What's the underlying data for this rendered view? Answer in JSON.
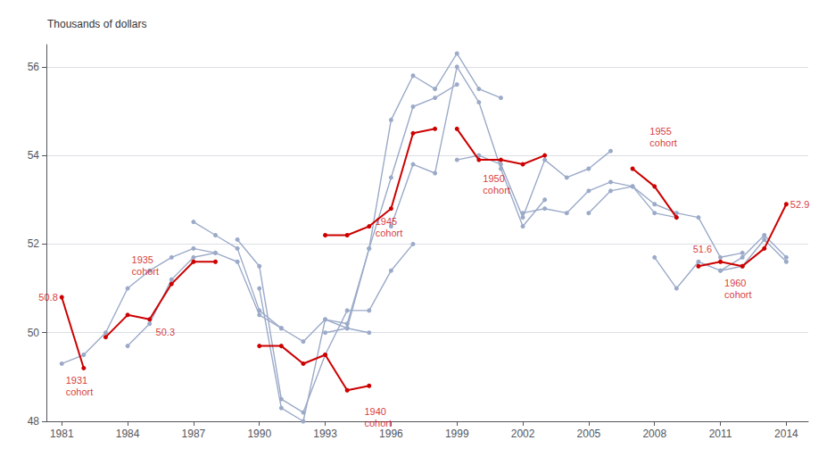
{
  "chart_data": {
    "type": "line",
    "title": "Thousands of dollars",
    "xlim": [
      1980.3,
      2015.0
    ],
    "xticks": [
      1981,
      1984,
      1987,
      1990,
      1993,
      1996,
      1999,
      2002,
      2005,
      2008,
      2011,
      2014
    ],
    "ylim": [
      48,
      56.5
    ],
    "yticks": [
      48,
      50,
      52,
      54,
      56
    ],
    "grid": true,
    "series": [
      {
        "color": "#9BAAC8",
        "marker": "circle",
        "line_style": "solid",
        "x": [
          1981,
          1982,
          1983,
          1984,
          1985,
          1986,
          1987,
          1988
        ],
        "values": [
          49.3,
          49.5,
          50.0,
          51.0,
          51.4,
          51.7,
          51.9,
          51.8
        ]
      },
      {
        "color": "#9BAAC8",
        "marker": "circle",
        "line_style": "solid",
        "x": [
          1984,
          1985,
          1986,
          1987,
          1988,
          1989,
          1990,
          1991
        ],
        "values": [
          49.7,
          50.2,
          51.2,
          51.7,
          51.8,
          51.6,
          50.4,
          50.1
        ]
      },
      {
        "color": "#9BAAC8",
        "marker": "circle",
        "line_style": "solid",
        "x": [
          1987,
          1988,
          1989,
          1990,
          1991,
          1992,
          1993,
          1994,
          1995
        ],
        "values": [
          52.5,
          52.2,
          51.9,
          50.5,
          50.1,
          49.8,
          50.3,
          50.1,
          50.0
        ]
      },
      {
        "color": "#9BAAC8",
        "marker": "circle",
        "line_style": "solid",
        "x": [
          1989,
          1990,
          1991,
          1992,
          1993,
          1994,
          1995,
          1996,
          1997
        ],
        "values": [
          52.1,
          51.5,
          48.5,
          48.2,
          49.5,
          50.5,
          50.5,
          51.4,
          52.0
        ]
      },
      {
        "color": "#9BAAC8",
        "marker": "circle",
        "line_style": "solid",
        "x": [
          1990,
          1991,
          1992,
          1993,
          1994,
          1995,
          1996,
          1997,
          1998,
          1999
        ],
        "values": [
          51.0,
          48.3,
          48.0,
          50.3,
          50.2,
          51.9,
          53.5,
          55.1,
          55.3,
          55.6
        ]
      },
      {
        "color": "#9BAAC8",
        "marker": "circle",
        "line_style": "solid",
        "x": [
          1993,
          1994,
          1995,
          1996,
          1997,
          1998,
          1999,
          2000,
          2001
        ],
        "values": [
          50.0,
          50.1,
          51.9,
          54.8,
          55.8,
          55.5,
          56.3,
          55.5,
          55.3
        ]
      },
      {
        "color": "#9BAAC8",
        "marker": "circle",
        "line_style": "solid",
        "x": [
          1996,
          1997,
          1998,
          1999,
          2000,
          2001,
          2002,
          2003
        ],
        "values": [
          52.4,
          53.8,
          53.6,
          56.0,
          55.2,
          53.7,
          52.4,
          53.0
        ]
      },
      {
        "color": "#9BAAC8",
        "marker": "circle",
        "line_style": "solid",
        "x": [
          1999,
          2000,
          2001,
          2002,
          2003,
          2004,
          2005,
          2006
        ],
        "values": [
          53.9,
          54.0,
          53.8,
          52.6,
          53.9,
          53.5,
          53.7,
          54.1
        ]
      },
      {
        "color": "#9BAAC8",
        "marker": "circle",
        "line_style": "solid",
        "x": [
          2002,
          2003,
          2004,
          2005,
          2006,
          2007,
          2008,
          2009
        ],
        "values": [
          52.7,
          52.8,
          52.7,
          53.2,
          53.4,
          53.3,
          52.7,
          52.6
        ]
      },
      {
        "color": "#9BAAC8",
        "marker": "circle",
        "line_style": "solid",
        "x": [
          2005,
          2006,
          2007,
          2008,
          2009,
          2010,
          2011,
          2012
        ],
        "values": [
          52.7,
          53.2,
          53.3,
          52.9,
          52.7,
          52.6,
          51.7,
          51.8
        ]
      },
      {
        "color": "#9BAAC8",
        "marker": "circle",
        "line_style": "solid",
        "x": [
          2008,
          2009,
          2010,
          2011,
          2012,
          2013,
          2014
        ],
        "values": [
          51.7,
          51.0,
          51.6,
          51.4,
          51.7,
          52.2,
          51.7
        ]
      },
      {
        "color": "#9BAAC8",
        "marker": "circle",
        "line_style": "solid",
        "x": [
          2011,
          2012,
          2013,
          2014
        ],
        "values": [
          51.4,
          51.5,
          52.1,
          51.6
        ]
      },
      {
        "color": "#CC0000",
        "marker": "circle",
        "line_style": "solid",
        "x": [
          1981,
          1982
        ],
        "values": [
          50.8,
          49.2
        ]
      },
      {
        "color": "#CC0000",
        "marker": "circle",
        "line_style": "solid",
        "x": [
          1983,
          1984,
          1985,
          1986,
          1987,
          1988
        ],
        "values": [
          49.9,
          50.4,
          50.3,
          51.1,
          51.6,
          51.6
        ]
      },
      {
        "color": "#CC0000",
        "marker": "circle",
        "line_style": "solid",
        "x": [
          1990,
          1991,
          1992,
          1993,
          1994,
          1995
        ],
        "values": [
          49.7,
          49.7,
          49.3,
          49.5,
          48.7,
          48.8
        ]
      },
      {
        "color": "#CC0000",
        "marker": "circle",
        "line_style": "solid",
        "x": [
          1993,
          1994,
          1995,
          1996,
          1997,
          1998
        ],
        "values": [
          52.2,
          52.2,
          52.4,
          52.8,
          54.5,
          54.6
        ]
      },
      {
        "color": "#CC0000",
        "marker": "circle",
        "line_style": "solid",
        "x": [
          1999,
          2000,
          2001,
          2002,
          2003
        ],
        "values": [
          54.6,
          53.9,
          53.9,
          53.8,
          54.0
        ]
      },
      {
        "color": "#CC0000",
        "marker": "circle",
        "line_style": "solid",
        "x": [
          2007,
          2008,
          2009
        ],
        "values": [
          53.7,
          53.3,
          52.6
        ]
      },
      {
        "color": "#CC0000",
        "marker": "circle",
        "line_style": "solid",
        "x": [
          2010,
          2011,
          2012,
          2013,
          2014
        ],
        "values": [
          51.5,
          51.6,
          51.5,
          51.9,
          52.9
        ]
      }
    ],
    "annotations": [
      {
        "text": "50.8",
        "x": 1980.9,
        "y": 50.8,
        "color": "#CC0000"
      },
      {
        "text": "1931\ncohort",
        "x": 1981.1,
        "y": 49.05,
        "color": "#CC0000"
      },
      {
        "text": "1935\ncohort",
        "x": 1984.1,
        "y": 51.25,
        "color": "#CC0000"
      },
      {
        "text": "50.3",
        "x": 1985.2,
        "y": 50.15,
        "color": "#CC0000"
      },
      {
        "text": "1940\ncohort",
        "x": 1994.7,
        "y": 48.35,
        "color": "#CC0000"
      },
      {
        "text": "1945\ncohort",
        "x": 1995.2,
        "y": 52.65,
        "color": "#CC0000"
      },
      {
        "text": "1950\ncohort",
        "x": 2000.1,
        "y": 53.6,
        "color": "#CC0000"
      },
      {
        "text": "1955\ncohort",
        "x": 2007.7,
        "y": 54.15,
        "color": "#CC0000"
      },
      {
        "text": "51.6",
        "x": 2010.7,
        "y": 51.75,
        "color": "#CC0000"
      },
      {
        "text": "1960\ncohort",
        "x": 2011.1,
        "y": 51.25,
        "color": "#CC0000"
      },
      {
        "text": "52.9",
        "x": 2014.1,
        "y": 52.9,
        "color": "#CC0000"
      }
    ]
  }
}
